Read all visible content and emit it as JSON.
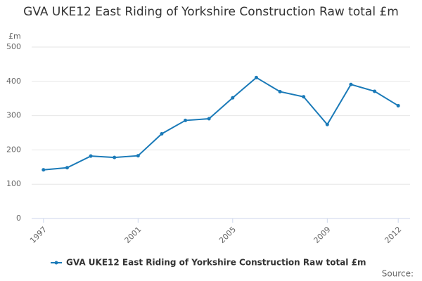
{
  "chart_data": {
    "type": "line",
    "title": "GVA UKE12 East Riding of Yorkshire Construction Raw total £m",
    "y_label": "£m",
    "source": "Source:",
    "x": [
      1997,
      1998,
      1999,
      2000,
      2001,
      2002,
      2003,
      2004,
      2005,
      2006,
      2007,
      2008,
      2009,
      2010,
      2011,
      2012
    ],
    "series": [
      {
        "name": "GVA UKE12 East Riding of Yorkshire Construction Raw total £m",
        "color": "#1a7ab8",
        "values": [
          142,
          148,
          182,
          178,
          183,
          247,
          286,
          291,
          352,
          411,
          370,
          355,
          274,
          391,
          371,
          329
        ]
      }
    ],
    "xlim": [
      1996.5,
      2012.5
    ],
    "xticks": [
      1997,
      2001,
      2005,
      2009,
      2012
    ],
    "ylim": [
      0,
      500
    ],
    "yticks": [
      0,
      100,
      200,
      300,
      400,
      500
    ],
    "grid": true
  }
}
